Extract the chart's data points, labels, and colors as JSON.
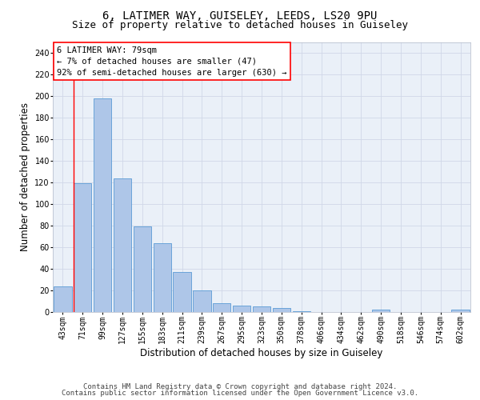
{
  "title_line1": "6, LATIMER WAY, GUISELEY, LEEDS, LS20 9PU",
  "title_line2": "Size of property relative to detached houses in Guiseley",
  "xlabel": "Distribution of detached houses by size in Guiseley",
  "ylabel": "Number of detached properties",
  "bar_labels": [
    "43sqm",
    "71sqm",
    "99sqm",
    "127sqm",
    "155sqm",
    "183sqm",
    "211sqm",
    "239sqm",
    "267sqm",
    "295sqm",
    "323sqm",
    "350sqm",
    "378sqm",
    "406sqm",
    "434sqm",
    "462sqm",
    "490sqm",
    "518sqm",
    "546sqm",
    "574sqm",
    "602sqm"
  ],
  "bar_values": [
    24,
    119,
    198,
    124,
    79,
    64,
    37,
    20,
    8,
    6,
    5,
    4,
    1,
    0,
    0,
    0,
    2,
    0,
    0,
    0,
    2
  ],
  "bar_color": "#aec6e8",
  "bar_edge_color": "#5b9bd5",
  "grid_color": "#d0d8e8",
  "bg_color": "#eaf0f8",
  "annotation_line1": "6 LATIMER WAY: 79sqm",
  "annotation_line2": "← 7% of detached houses are smaller (47)",
  "annotation_line3": "92% of semi-detached houses are larger (630) →",
  "red_line_x": 1,
  "ylim": [
    0,
    250
  ],
  "yticks": [
    0,
    20,
    40,
    60,
    80,
    100,
    120,
    140,
    160,
    180,
    200,
    220,
    240
  ],
  "footer_line1": "Contains HM Land Registry data © Crown copyright and database right 2024.",
  "footer_line2": "Contains public sector information licensed under the Open Government Licence v3.0.",
  "title_fontsize": 10,
  "subtitle_fontsize": 9,
  "xlabel_fontsize": 8.5,
  "ylabel_fontsize": 8.5,
  "tick_fontsize": 7,
  "annotation_fontsize": 7.5,
  "footer_fontsize": 6.5
}
